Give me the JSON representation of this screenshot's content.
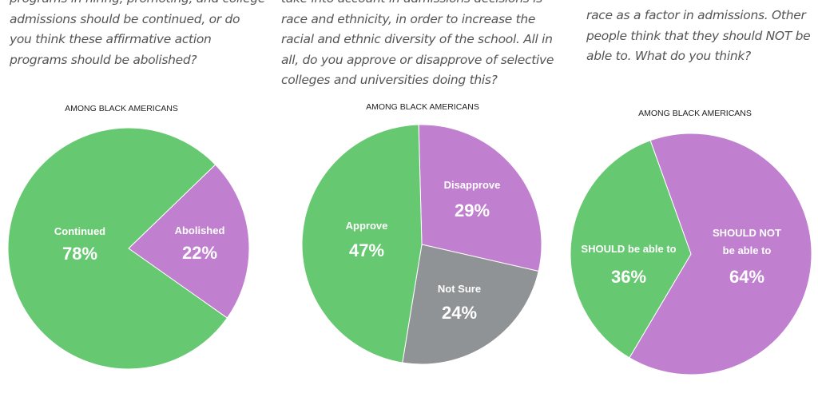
{
  "columns": [
    {
      "question_lines": [
        "programs in hiring, promoting, and college",
        "admissions should be continued, or do",
        "you think these affirmative action",
        "programs should be abolished?"
      ],
      "subtitle": "AMONG BLACK AMERICANS"
    },
    {
      "question_lines": [
        "take into account in admissions decisions is",
        "race and ethnicity, in order to increase the",
        "racial and ethnic diversity of the school. All in",
        "all, do you approve or disapprove of selective",
        "colleges and universities doing this?"
      ],
      "subtitle": "AMONG BLACK AMERICANS"
    },
    {
      "question_lines": [
        "race as a factor in admissions. Other",
        "people think that they should NOT be",
        "able to. What do you think?"
      ],
      "subtitle": "AMONG BLACK AMERICANS"
    }
  ],
  "colors": {
    "green": "#66c870",
    "purple": "#c07fcf",
    "gray": "#909395"
  },
  "chart_data": [
    {
      "type": "pie",
      "title": "AMONG BLACK AMERICANS",
      "slices": [
        {
          "label": "Abolished",
          "value": 22,
          "value_label": "22%",
          "color": "#c07fcf"
        },
        {
          "label": "Continued",
          "value": 78,
          "value_label": "78%",
          "color": "#66c870"
        }
      ]
    },
    {
      "type": "pie",
      "title": "AMONG BLACK AMERICANS",
      "slices": [
        {
          "label": "Disapprove",
          "value": 29,
          "value_label": "29%",
          "color": "#c07fcf"
        },
        {
          "label": "Not Sure",
          "value": 24,
          "value_label": "24%",
          "color": "#909395"
        },
        {
          "label": "Approve",
          "value": 47,
          "value_label": "47%",
          "color": "#66c870"
        }
      ]
    },
    {
      "type": "pie",
      "title": "AMONG BLACK AMERICANS",
      "slices": [
        {
          "label": "SHOULD NOT be able to",
          "value": 64,
          "value_label": "64%",
          "color": "#c07fcf"
        },
        {
          "label": "SHOULD be able to",
          "value": 36,
          "value_label": "36%",
          "color": "#66c870"
        }
      ]
    }
  ]
}
